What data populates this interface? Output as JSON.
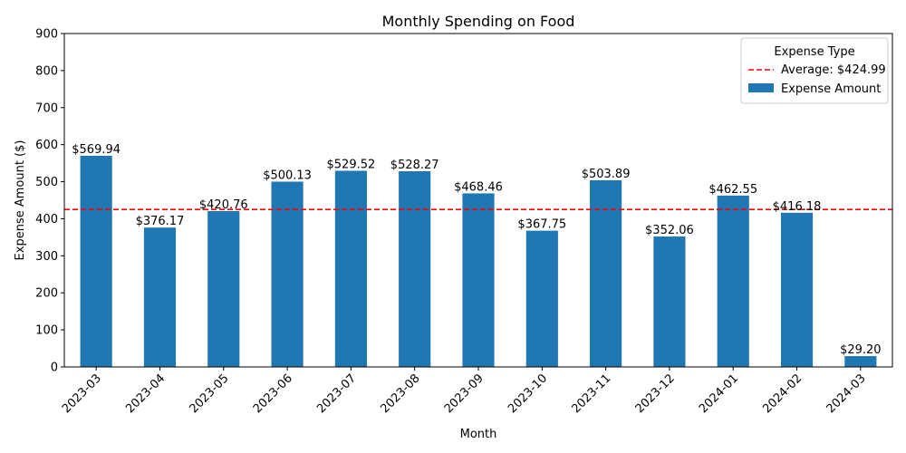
{
  "chart_data": {
    "type": "bar",
    "title": "Monthly Spending on Food",
    "xlabel": "Month",
    "ylabel": "Expense Amount ($)",
    "ylim": [
      0,
      900
    ],
    "yticks": [
      0,
      100,
      200,
      300,
      400,
      500,
      600,
      700,
      800,
      900
    ],
    "categories": [
      "2023-03",
      "2023-04",
      "2023-05",
      "2023-06",
      "2023-07",
      "2023-08",
      "2023-09",
      "2023-10",
      "2023-11",
      "2023-12",
      "2024-01",
      "2024-02",
      "2024-03"
    ],
    "series": [
      {
        "name": "Expense Amount",
        "color": "#1f77b4",
        "values": [
          569.94,
          376.17,
          420.76,
          500.13,
          529.52,
          528.27,
          468.46,
          367.75,
          503.89,
          352.06,
          462.55,
          416.18,
          29.2
        ],
        "labels": [
          "$569.94",
          "$376.17",
          "$420.76",
          "$500.13",
          "$529.52",
          "$528.27",
          "$468.46",
          "$367.75",
          "$503.89",
          "$352.06",
          "$462.55",
          "$416.18",
          "$29.20"
        ]
      }
    ],
    "average_line": {
      "name": "Average: $424.99",
      "value": 424.99,
      "color": "#ff0000",
      "style": "dashed"
    },
    "legend": {
      "title": "Expense Type",
      "placement": "top-right"
    },
    "grid": false
  }
}
